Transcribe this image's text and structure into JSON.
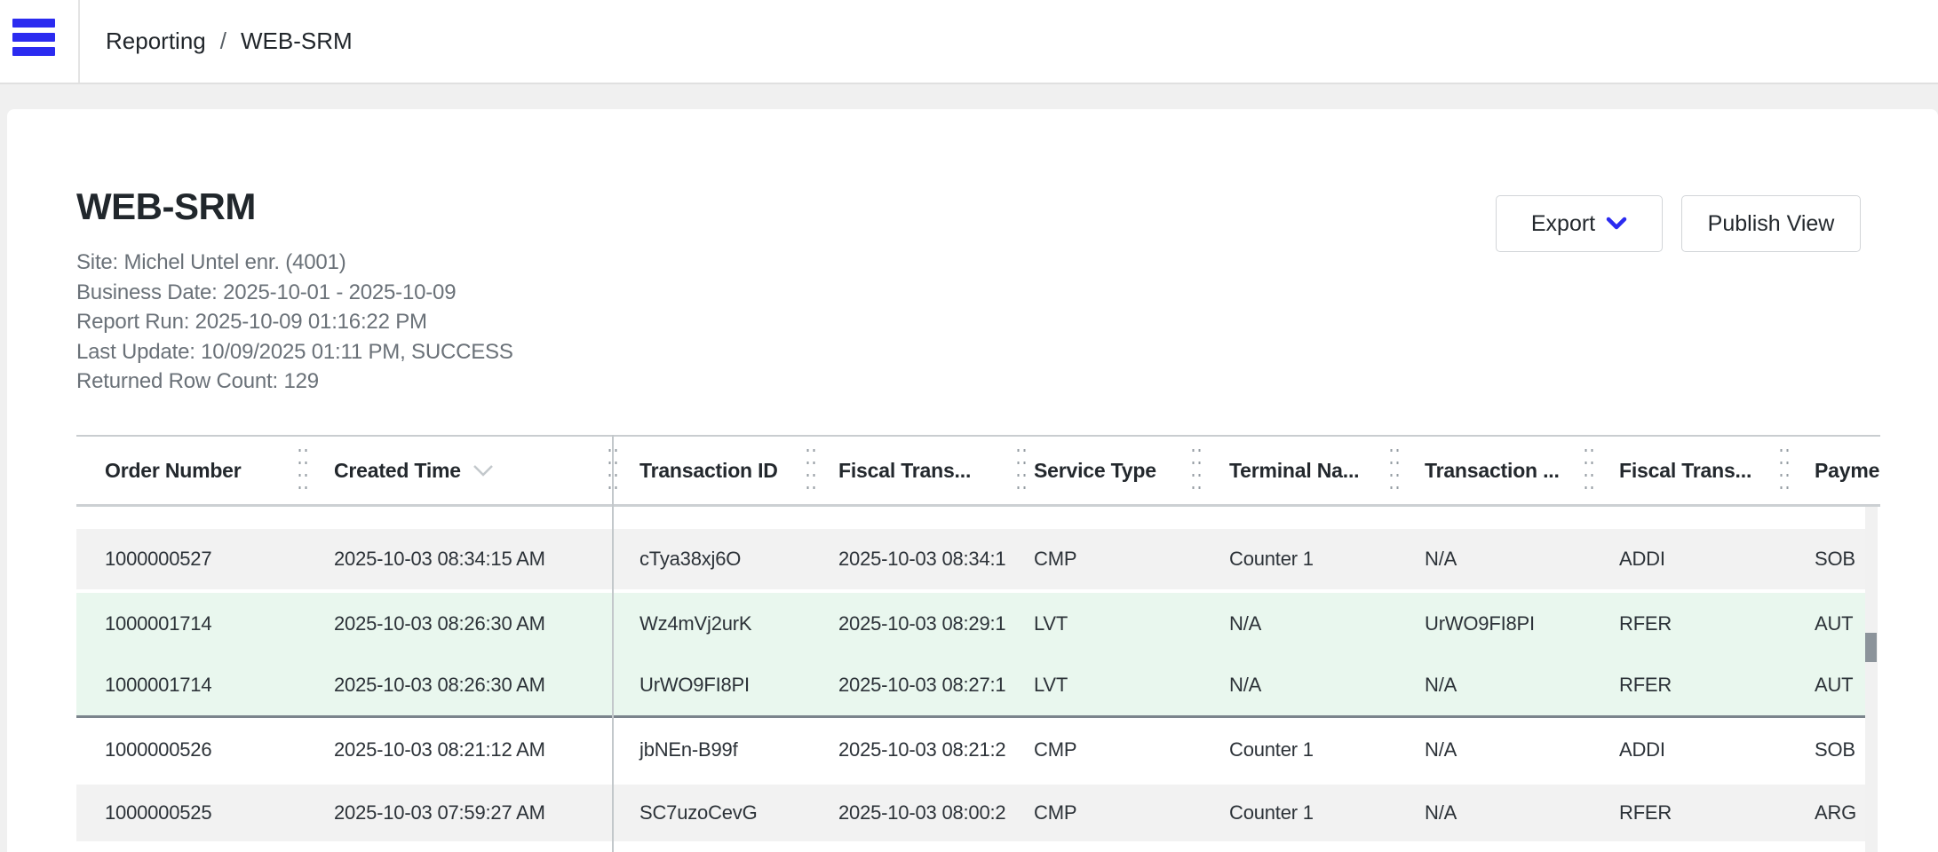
{
  "topbar": {
    "breadcrumb": {
      "parent": "Reporting",
      "separator": "/",
      "current": "WEB-SRM"
    }
  },
  "report": {
    "title": "WEB-SRM",
    "meta": [
      "Site: Michel Untel enr. (4001)",
      "Business Date: 2025-10-01 - 2025-10-09",
      "Report Run: 2025-10-09 01:16:22 PM",
      "Last Update: 10/09/2025 01:11 PM, SUCCESS",
      "Returned Row Count: 129"
    ],
    "buttons": {
      "export": "Export",
      "publish": "Publish View"
    }
  },
  "table": {
    "columns": [
      {
        "key": "order-number",
        "label": "Order Number"
      },
      {
        "key": "created-time",
        "label": "Created Time",
        "sorted": "desc"
      },
      {
        "key": "transaction-id",
        "label": "Transaction ID"
      },
      {
        "key": "fiscal-trans-time",
        "label": "Fiscal Trans..."
      },
      {
        "key": "service-type",
        "label": "Service Type"
      },
      {
        "key": "terminal-name",
        "label": "Terminal Na..."
      },
      {
        "key": "transaction-ref",
        "label": "Transaction ..."
      },
      {
        "key": "fiscal-trans-type",
        "label": "Fiscal Trans..."
      },
      {
        "key": "payment",
        "label": "Paymen"
      }
    ],
    "rows": [
      {
        "highlight": "gray",
        "cells": [
          "1000000527",
          "2025-10-03 08:34:15 AM",
          "cTya38xj6O",
          "2025-10-03 08:34:1",
          "CMP",
          "Counter 1",
          "N/A",
          "ADDI",
          "SOB"
        ]
      },
      {
        "highlight": "green",
        "cells": [
          "1000001714",
          "2025-10-03 08:26:30 AM",
          "Wz4mVj2urK",
          "2025-10-03 08:29:1",
          "LVT",
          "N/A",
          "UrWO9FI8PI",
          "RFER",
          "AUT"
        ]
      },
      {
        "highlight": "green",
        "cells": [
          "1000001714",
          "2025-10-03 08:26:30 AM",
          "UrWO9FI8PI",
          "2025-10-03 08:27:1",
          "LVT",
          "N/A",
          "N/A",
          "RFER",
          "AUT"
        ]
      },
      {
        "highlight": "white",
        "cells": [
          "1000000526",
          "2025-10-03 08:21:12 AM",
          "jbNEn-B99f",
          "2025-10-03 08:21:2",
          "CMP",
          "Counter 1",
          "N/A",
          "ADDI",
          "SOB"
        ]
      },
      {
        "highlight": "gray",
        "cells": [
          "1000000525",
          "2025-10-03 07:59:27 AM",
          "SC7uzoCevG",
          "2025-10-03 08:00:2",
          "CMP",
          "Counter 1",
          "N/A",
          "RFER",
          "ARG"
        ]
      }
    ],
    "group_separator_after_row_index": 2
  },
  "colors": {
    "accent_blue": "#2b2bf0",
    "row_highlight_green": "#e9f7ee",
    "row_stripe_gray": "#f2f2f2",
    "group_separator": "#7b848c",
    "scroll_thumb": "#8c949b"
  }
}
